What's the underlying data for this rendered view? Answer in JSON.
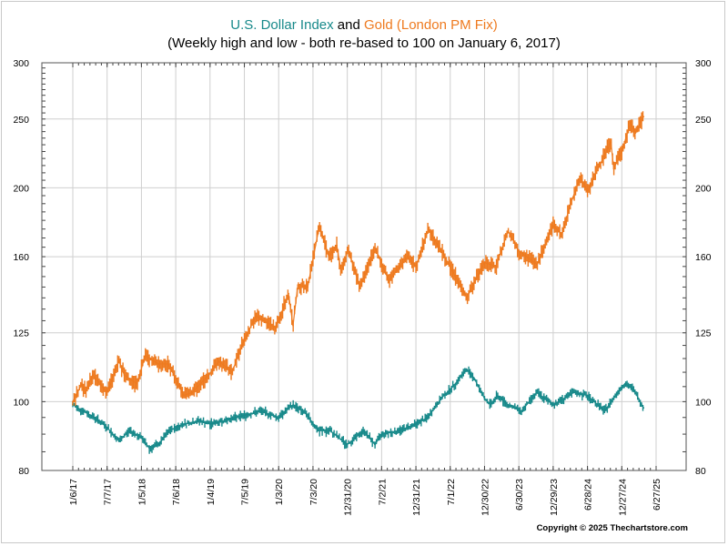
{
  "colors": {
    "usd": "#17898a",
    "gold": "#ee7a1f",
    "grid": "#cfcfcf",
    "axis": "#000000"
  },
  "title": {
    "part1": "U.S. Dollar Index",
    "connector": " and ",
    "part2": "Gold (London PM Fix)"
  },
  "subtitle": "(Weekly high and low - both re-based to 100 on January 6, 2017)",
  "copyright": "Copyright © 2025 Thechartstore.com",
  "chart_data": {
    "type": "line",
    "title": "U.S. Dollar Index and Gold (London PM Fix)",
    "subtitle": "(Weekly high and low - both re-based to 100 on January 6, 2017)",
    "y_scale": "log",
    "ylim": [
      80,
      300
    ],
    "y_ticks": [
      80,
      100,
      125,
      160,
      200,
      250,
      300
    ],
    "grid": true,
    "x_ticks": [
      "1/6/17",
      "7/7/17",
      "1/5/18",
      "7/6/18",
      "1/4/19",
      "7/5/19",
      "1/3/20",
      "7/3/20",
      "12/31/20",
      "7/2/21",
      "12/31/21",
      "7/1/22",
      "12/30/22",
      "6/30/23",
      "12/29/23",
      "6/28/24",
      "12/27/24",
      "6/27/25"
    ],
    "xlim": [
      "2017-01-06",
      "2025-06-27"
    ],
    "series": [
      {
        "name": "U.S. Dollar Index",
        "values": [
          [
            "2017-01-06",
            99
          ],
          [
            "2017-03-01",
            97
          ],
          [
            "2017-05-01",
            95
          ],
          [
            "2017-07-07",
            92
          ],
          [
            "2017-09-08",
            88
          ],
          [
            "2017-11-03",
            91
          ],
          [
            "2018-01-05",
            89
          ],
          [
            "2018-02-16",
            86
          ],
          [
            "2018-04-06",
            87
          ],
          [
            "2018-06-01",
            91
          ],
          [
            "2018-08-17",
            93
          ],
          [
            "2018-11-09",
            94
          ],
          [
            "2019-01-04",
            93
          ],
          [
            "2019-05-24",
            95
          ],
          [
            "2019-10-01",
            97
          ],
          [
            "2019-12-31",
            95
          ],
          [
            "2020-03-20",
            99
          ],
          [
            "2020-05-29",
            96
          ],
          [
            "2020-07-31",
            91
          ],
          [
            "2020-10-02",
            91
          ],
          [
            "2020-12-31",
            87
          ],
          [
            "2021-03-31",
            91
          ],
          [
            "2021-05-28",
            87
          ],
          [
            "2021-07-02",
            90
          ],
          [
            "2021-09-30",
            91
          ],
          [
            "2021-12-31",
            93
          ],
          [
            "2022-03-04",
            95
          ],
          [
            "2022-05-13",
            101
          ],
          [
            "2022-07-15",
            105
          ],
          [
            "2022-09-27",
            111
          ],
          [
            "2022-11-04",
            108
          ],
          [
            "2022-12-30",
            101
          ],
          [
            "2023-02-01",
            99
          ],
          [
            "2023-03-08",
            102
          ],
          [
            "2023-05-03",
            99
          ],
          [
            "2023-07-14",
            97
          ],
          [
            "2023-10-03",
            103
          ],
          [
            "2023-12-29",
            99
          ],
          [
            "2024-04-16",
            103
          ],
          [
            "2024-06-28",
            102
          ],
          [
            "2024-09-27",
            97
          ],
          [
            "2024-12-27",
            105
          ],
          [
            "2025-01-13",
            106
          ],
          [
            "2025-02-28",
            104
          ],
          [
            "2025-04-21",
            98
          ]
        ]
      },
      {
        "name": "Gold (London PM Fix)",
        "values": [
          [
            "2017-01-06",
            100
          ],
          [
            "2017-02-24",
            106
          ],
          [
            "2017-03-15",
            103
          ],
          [
            "2017-04-21",
            109
          ],
          [
            "2017-07-07",
            103
          ],
          [
            "2017-09-08",
            114
          ],
          [
            "2017-10-06",
            109
          ],
          [
            "2017-12-12",
            106
          ],
          [
            "2018-01-25",
            116
          ],
          [
            "2018-04-06",
            113
          ],
          [
            "2018-05-25",
            113
          ],
          [
            "2018-07-06",
            108
          ],
          [
            "2018-08-16",
            102
          ],
          [
            "2018-10-01",
            103
          ],
          [
            "2018-12-28",
            109
          ],
          [
            "2019-02-20",
            114
          ],
          [
            "2019-05-01",
            110
          ],
          [
            "2019-06-28",
            121
          ],
          [
            "2019-09-04",
            132
          ],
          [
            "2019-12-20",
            127
          ],
          [
            "2020-02-24",
            142
          ],
          [
            "2020-03-19",
            128
          ],
          [
            "2020-04-14",
            146
          ],
          [
            "2020-06-05",
            145
          ],
          [
            "2020-08-06",
            177
          ],
          [
            "2020-09-25",
            160
          ],
          [
            "2020-11-06",
            166
          ],
          [
            "2020-11-30",
            152
          ],
          [
            "2021-01-05",
            164
          ],
          [
            "2021-03-08",
            145
          ],
          [
            "2021-05-31",
            164
          ],
          [
            "2021-08-09",
            148
          ],
          [
            "2021-11-16",
            160
          ],
          [
            "2021-12-31",
            155
          ],
          [
            "2022-03-08",
            175
          ],
          [
            "2022-06-01",
            160
          ],
          [
            "2022-09-27",
            140
          ],
          [
            "2022-12-30",
            157
          ],
          [
            "2023-02-28",
            155
          ],
          [
            "2023-05-04",
            174
          ],
          [
            "2023-06-30",
            163
          ],
          [
            "2023-10-05",
            156
          ],
          [
            "2023-12-29",
            177
          ],
          [
            "2024-02-14",
            172
          ],
          [
            "2024-03-28",
            189
          ],
          [
            "2024-05-20",
            207
          ],
          [
            "2024-06-28",
            198
          ],
          [
            "2024-10-30",
            232
          ],
          [
            "2024-11-14",
            213
          ],
          [
            "2024-12-27",
            225
          ],
          [
            "2025-02-11",
            247
          ],
          [
            "2025-03-10",
            239
          ],
          [
            "2025-04-21",
            252
          ]
        ]
      }
    ]
  }
}
